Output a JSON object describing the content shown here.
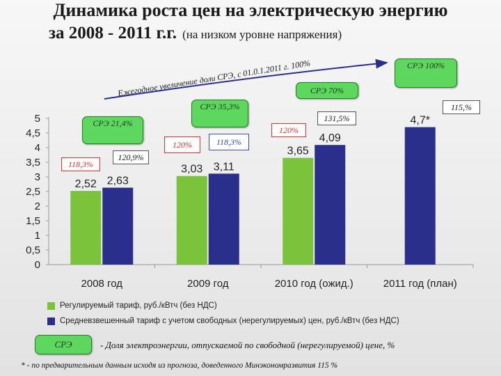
{
  "header": {
    "title_line1": "Динамика роста цен на электрическую энергию",
    "title_line2": "за 2008 - 2011 г.г.",
    "title_sub": "(на низком уровне напряжения)"
  },
  "arrow_text": "Ежегодное увеличение доли СРЭ,  с 01.0.1.2011 г. 100%",
  "chart_data": {
    "type": "bar",
    "categories": [
      "2008 год",
      "2009 год",
      "2010 год (ожид.)",
      "2011 год (план)"
    ],
    "series": [
      {
        "name": "Регулируемый тариф, руб./кВтч (без НДС)",
        "color": "#7cc33c",
        "values": [
          2.52,
          3.03,
          3.65,
          null
        ],
        "labels": [
          "2,52",
          "3,03",
          "3,65",
          ""
        ]
      },
      {
        "name": "Средневзвешенный тариф с учетом свободных (нерегулируемых) цен, руб./кВтч (без НДС)",
        "color": "#2b2f8c",
        "values": [
          2.63,
          3.11,
          4.09,
          4.7
        ],
        "labels": [
          "2,63",
          "3,11",
          "4,09",
          "4,7*"
        ]
      }
    ],
    "yticks": [
      "0",
      "0,5",
      "1",
      "1,5",
      "2",
      "2,5",
      "3",
      "3,5",
      "4",
      "4,5",
      "5"
    ],
    "ylim": [
      0,
      5
    ]
  },
  "sre_boxes": {
    "b2008": "СРЭ 21,4%",
    "b2009": "СРЭ 35,3%",
    "b2010": "СРЭ 70%",
    "b2011": "СРЭ 100%",
    "legend": "СРЭ"
  },
  "percent_labels": {
    "p2008_red": "118,3%",
    "p2008_blk": "120,9%",
    "p2009_red": "120%",
    "p2009_blue": "118,3%",
    "p2010_red": "120%",
    "p2010_blk": "131,5%",
    "p2011_blk": "115,%"
  },
  "legend_text": "- Доля  электроэнергии, отпускаемой по свободной (нерегулируемой) цене, %",
  "footnote": "* - по предварительным данным исходя из прогноза, доведенного Минэкономразвития 115 %"
}
